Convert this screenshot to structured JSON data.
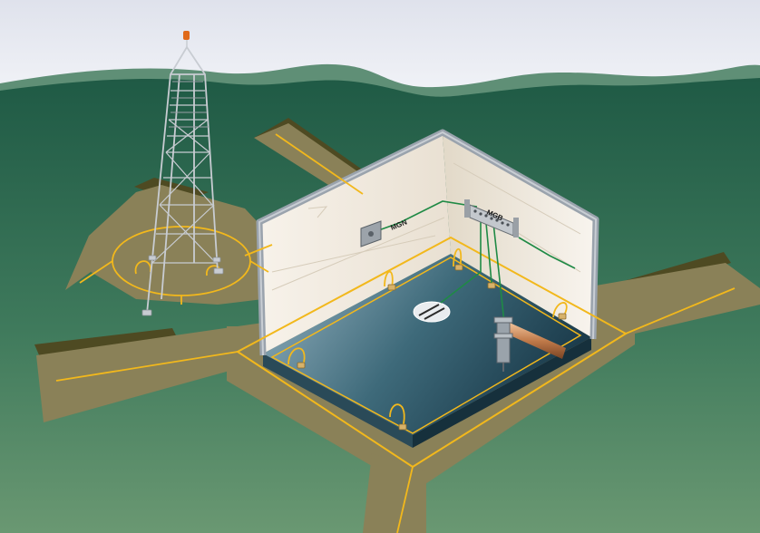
{
  "labels": {
    "mgn": "MGN",
    "mgb": "MGB"
  },
  "colors": {
    "sky_top": "#dfe2ec",
    "sky_bottom": "#f6f7fa",
    "ground_top": "#1f5a45",
    "ground_bottom": "#6a9872",
    "trench": "#8a8158",
    "trench_dark": "#4e4a22",
    "conductor": "#f2b81c",
    "green_wire": "#1f8a45",
    "slab": "#3e6a7a",
    "wall": "#f2ece2",
    "wall_edge": "#9aa3ad"
  },
  "icons": [
    "tower-icon",
    "beacon-icon",
    "ground-rod-icon",
    "busbar-icon",
    "cable-entry-icon",
    "pipe-icon"
  ]
}
